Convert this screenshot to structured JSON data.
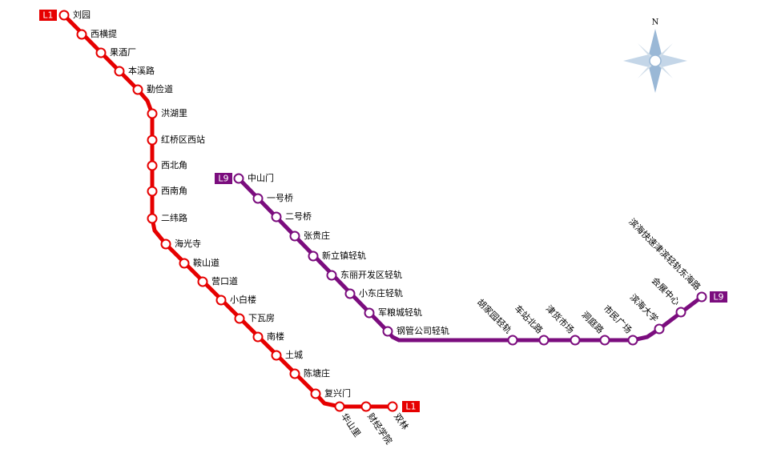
{
  "compass": "N",
  "lines": [
    {
      "start_badge": "L1",
      "end_badge": "L1",
      "stations": [
        "刘园",
        "西横提",
        "果酒厂",
        "本溪路",
        "勤俭道",
        "洪湖里",
        "红桥区西站",
        "西北角",
        "西南角",
        "二纬路",
        "海光寺",
        "鞍山道",
        "营口道",
        "小白楼",
        "下瓦房",
        "南楼",
        "土城",
        "陈塘庄",
        "复兴门",
        "华山里",
        "财经学院",
        "双林"
      ]
    },
    {
      "start_badge": "L9",
      "end_badge": "L9",
      "stations": [
        "中山门",
        "一号桥",
        "二号桥",
        "张贵庄",
        "新立镇轻轨",
        "东丽开发区轻轨",
        "小东庄轻轨",
        "军粮城轻轨",
        "钢管公司轻轨",
        "胡家园轻轨",
        "车站北路",
        "津货市场",
        "洞庭路",
        "市民广场",
        "滨海大学",
        "会展中心",
        "滨海快速津滨轻轨东海路"
      ]
    }
  ]
}
